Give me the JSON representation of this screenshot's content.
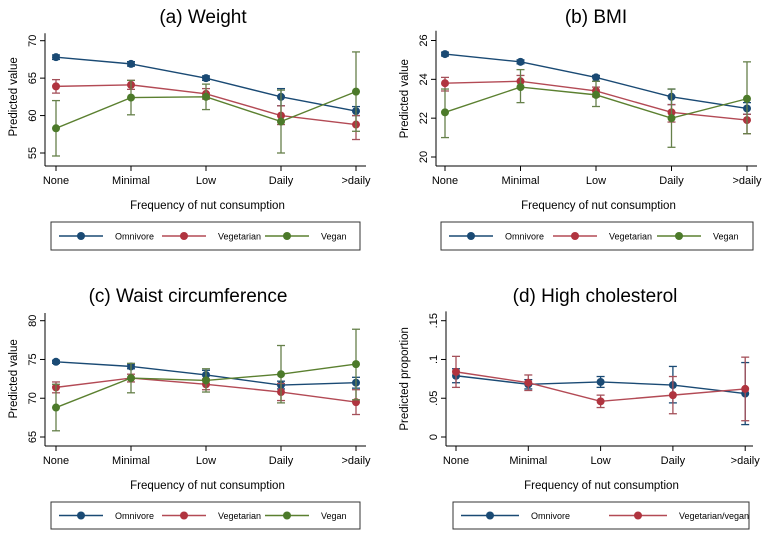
{
  "colors": {
    "omnivore": "#1a4a74",
    "vegetarian": "#b0343f",
    "vegan": "#4c7a2a",
    "omnivore_line": "#1a4a74",
    "vegetarian_line": "#b34a55",
    "vegan_line": "#5b8030",
    "omnivore_ci": "#1a4a74",
    "vegetarian_ci": "#a4505a",
    "vegan_ci": "#66804a"
  },
  "chart_data": [
    {
      "type": "line",
      "title": "(a) Weight",
      "xlabel": "Frequency of nut consumption",
      "ylabel": "Predicted value",
      "categories": [
        "None",
        "Minimal",
        "Low",
        "Daily",
        ">daily"
      ],
      "ylim": [
        53.5,
        71
      ],
      "yticks": [
        55,
        60,
        65,
        70
      ],
      "ytick_labels": [
        "55",
        "60",
        "65",
        "70"
      ],
      "grid": false,
      "legend": "bottom",
      "series": [
        {
          "name": "Omnivore",
          "key": "omnivore",
          "values": [
            67.8,
            66.9,
            65.0,
            62.5,
            60.6
          ],
          "lower": [
            67.5,
            66.6,
            64.7,
            61.3,
            60.0
          ],
          "upper": [
            68.1,
            67.2,
            65.3,
            63.6,
            61.2
          ]
        },
        {
          "name": "Vegetarian",
          "key": "vegetarian",
          "values": [
            63.9,
            64.1,
            62.9,
            60.0,
            58.8
          ],
          "lower": [
            63.0,
            63.5,
            62.2,
            58.8,
            56.8
          ],
          "upper": [
            64.8,
            64.7,
            63.6,
            61.3,
            60.0
          ]
        },
        {
          "name": "Vegan",
          "key": "vegan",
          "values": [
            58.3,
            62.4,
            62.5,
            59.2,
            63.2
          ],
          "lower": [
            54.6,
            60.1,
            60.8,
            55.0,
            57.9
          ],
          "upper": [
            62.0,
            64.7,
            64.2,
            63.4,
            68.5
          ]
        }
      ]
    },
    {
      "type": "line",
      "title": "(b) BMI",
      "xlabel": "Frequency of nut consumption",
      "ylabel": "Predicted value",
      "categories": [
        "None",
        "Minimal",
        "Low",
        "Daily",
        ">daily"
      ],
      "ylim": [
        19.5,
        26.5
      ],
      "yticks": [
        20,
        22,
        24,
        26
      ],
      "ytick_labels": [
        "20",
        "22",
        "24",
        "26"
      ],
      "grid": false,
      "legend": "bottom",
      "series": [
        {
          "name": "Omnivore",
          "key": "omnivore",
          "values": [
            25.3,
            24.9,
            24.1,
            23.1,
            22.5
          ],
          "lower": [
            25.2,
            24.8,
            23.9,
            22.7,
            22.2
          ],
          "upper": [
            25.4,
            25.0,
            24.2,
            23.5,
            22.8
          ]
        },
        {
          "name": "Vegetarian",
          "key": "vegetarian",
          "values": [
            23.8,
            23.9,
            23.4,
            22.3,
            21.9
          ],
          "lower": [
            23.4,
            23.6,
            23.1,
            21.8,
            21.2
          ],
          "upper": [
            24.1,
            24.2,
            23.6,
            22.7,
            22.2
          ]
        },
        {
          "name": "Vegan",
          "key": "vegan",
          "values": [
            22.3,
            23.6,
            23.2,
            22.0,
            23.0
          ],
          "lower": [
            21.0,
            22.8,
            22.6,
            20.5,
            21.2
          ],
          "upper": [
            23.5,
            24.5,
            23.9,
            23.5,
            24.9
          ]
        }
      ]
    },
    {
      "type": "line",
      "title": "(c) Waist circumference",
      "xlabel": "Frequency of nut consumption",
      "ylabel": "Predicted value",
      "categories": [
        "None",
        "Minimal",
        "Low",
        "Daily",
        ">daily"
      ],
      "ylim": [
        63.8,
        81
      ],
      "yticks": [
        65,
        70,
        75,
        80
      ],
      "ytick_labels": [
        "65",
        "70",
        "75",
        "80"
      ],
      "grid": false,
      "legend": "bottom",
      "series": [
        {
          "name": "Omnivore",
          "key": "omnivore",
          "values": [
            74.7,
            74.1,
            73.0,
            71.7,
            72.0
          ],
          "lower": [
            74.5,
            73.8,
            72.4,
            71.2,
            71.3
          ],
          "upper": [
            74.9,
            74.4,
            73.6,
            72.2,
            72.7
          ]
        },
        {
          "name": "Vegetarian",
          "key": "vegetarian",
          "values": [
            71.4,
            72.6,
            71.8,
            70.8,
            69.5
          ],
          "lower": [
            70.7,
            72.1,
            71.1,
            69.7,
            67.9
          ],
          "upper": [
            72.1,
            73.1,
            72.5,
            71.9,
            71.1
          ]
        },
        {
          "name": "Vegan",
          "key": "vegan",
          "values": [
            68.8,
            72.6,
            72.3,
            73.1,
            74.4
          ],
          "lower": [
            65.8,
            70.7,
            70.8,
            69.4,
            69.8
          ],
          "upper": [
            71.8,
            74.5,
            73.8,
            76.8,
            78.9
          ]
        }
      ]
    },
    {
      "type": "line",
      "title": "(d) High cholesterol",
      "xlabel": "Frequency of nut consumption",
      "ylabel": "Predicted proportion",
      "categories": [
        "None",
        "Minimal",
        "Low",
        "Daily",
        ">daily"
      ],
      "ylim": [
        -0.012,
        0.162
      ],
      "yticks": [
        0,
        0.05,
        0.1,
        0.15
      ],
      "ytick_labels": [
        "0",
        ".05",
        ".1",
        ".15"
      ],
      "grid": false,
      "legend": "bottom",
      "series": [
        {
          "name": "Omnivore",
          "key": "omnivore",
          "values": [
            0.079,
            0.068,
            0.071,
            0.067,
            0.056
          ],
          "lower": [
            0.07,
            0.062,
            0.064,
            0.044,
            0.016
          ],
          "upper": [
            0.088,
            0.074,
            0.078,
            0.091,
            0.096
          ]
        },
        {
          "name": "Vegetarian/vegan",
          "key": "vegetarian",
          "values": [
            0.084,
            0.07,
            0.046,
            0.054,
            0.062
          ],
          "lower": [
            0.064,
            0.06,
            0.038,
            0.03,
            0.021
          ],
          "upper": [
            0.104,
            0.08,
            0.054,
            0.078,
            0.103
          ]
        }
      ]
    }
  ]
}
